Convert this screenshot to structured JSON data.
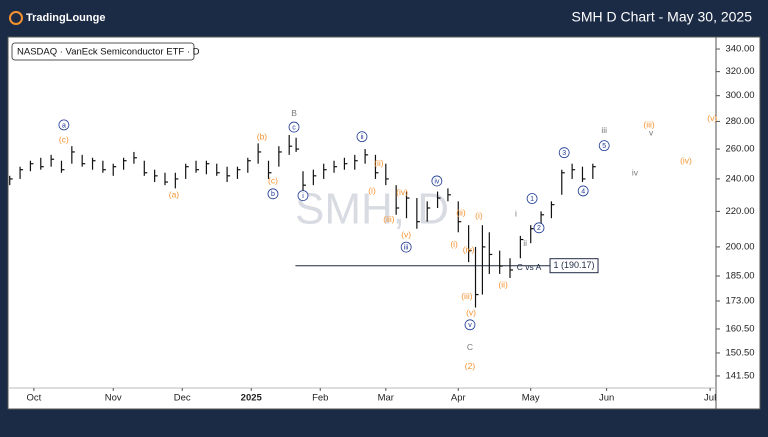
{
  "header": {
    "logo": "TradingLounge",
    "title": "SMH D Chart - May 30, 2025"
  },
  "chart_data": {
    "type": "ohlc",
    "legend": "NASDAQ · VanEck Semiconductor ETF · D",
    "watermark": "SMH, D",
    "log_scale": true,
    "color": "#111111",
    "xlim": [
      -7.5,
      197.7
    ],
    "xticks": [
      {
        "value": 0,
        "label": "Oct"
      },
      {
        "value": 23,
        "label": "Nov"
      },
      {
        "value": 43,
        "label": "Dec"
      },
      {
        "value": 63,
        "label": "2025"
      },
      {
        "value": 83,
        "label": "Feb"
      },
      {
        "value": 102,
        "label": "Mar"
      },
      {
        "value": 123,
        "label": "Apr"
      },
      {
        "value": 144,
        "label": "May"
      },
      {
        "value": 166,
        "label": "Jun"
      },
      {
        "value": 196,
        "label": "Jul"
      }
    ],
    "ylim": [
      137,
      350.2
    ],
    "yticks": [
      {
        "value": 340,
        "label": "340.00"
      },
      {
        "value": 320,
        "label": "320.00"
      },
      {
        "value": 300,
        "label": "300.00"
      },
      {
        "value": 280,
        "label": "280.00"
      },
      {
        "value": 260,
        "label": "260.00"
      },
      {
        "value": 240,
        "label": "240.00"
      },
      {
        "value": 220,
        "label": "220.00"
      },
      {
        "value": 200,
        "label": "200.00"
      },
      {
        "value": 185,
        "label": "185.00"
      },
      {
        "value": 173,
        "label": "173.00"
      },
      {
        "value": 160.5,
        "label": "160.50"
      },
      {
        "value": 150.5,
        "label": "150.50"
      },
      {
        "value": 141.5,
        "label": "141.50"
      }
    ],
    "x": [
      -7,
      -4,
      -1,
      2,
      5,
      8,
      11,
      14,
      17,
      20,
      23,
      26,
      29,
      32,
      35,
      38,
      41,
      44,
      47,
      50,
      53,
      56,
      59,
      62,
      65,
      68,
      71,
      74,
      76,
      78,
      81,
      84,
      87,
      90,
      93,
      96,
      99,
      102,
      105,
      108,
      111,
      114,
      117,
      120,
      123,
      126,
      128,
      130,
      132,
      135,
      138,
      141,
      144,
      147,
      150,
      153,
      156,
      159,
      162
    ],
    "high": [
      242,
      248,
      252,
      254,
      256,
      252,
      262,
      256,
      254,
      252,
      250,
      254,
      258,
      252,
      246,
      244,
      244,
      250,
      252,
      252,
      250,
      248,
      248,
      254,
      264,
      252,
      262,
      270,
      268,
      245,
      246,
      250,
      252,
      254,
      256,
      260,
      256,
      250,
      236,
      232,
      228,
      226,
      232,
      234,
      226,
      212,
      200,
      212,
      208,
      198,
      194,
      206,
      212,
      220,
      226,
      246,
      250,
      248,
      250
    ],
    "low": [
      236,
      240,
      245,
      246,
      248,
      244,
      250,
      248,
      246,
      244,
      242,
      246,
      250,
      242,
      238,
      236,
      234,
      240,
      244,
      243,
      242,
      238,
      240,
      244,
      250,
      240,
      248,
      256,
      258,
      230,
      236,
      240,
      244,
      246,
      246,
      250,
      240,
      236,
      218,
      216,
      210,
      214,
      222,
      226,
      208,
      192,
      170,
      176,
      186,
      186,
      184,
      194,
      202,
      208,
      216,
      230,
      240,
      238,
      240
    ],
    "close": [
      240,
      246,
      250,
      248,
      253,
      246,
      258,
      250,
      252,
      246,
      248,
      252,
      254,
      244,
      242,
      238,
      240,
      248,
      246,
      250,
      244,
      242,
      246,
      252,
      258,
      244,
      258,
      262,
      260,
      236,
      242,
      246,
      248,
      250,
      252,
      256,
      244,
      240,
      222,
      228,
      214,
      222,
      228,
      230,
      214,
      198,
      176,
      200,
      196,
      190,
      188,
      204,
      210,
      218,
      224,
      244,
      246,
      240,
      248
    ],
    "levels": [
      {
        "value": 190.17,
        "label": "1 (190.17)",
        "x_start": 75.8,
        "x_end": 149.6
      }
    ],
    "annotations": [
      {
        "text": "a",
        "x": 8.7,
        "y": 277.4,
        "color": "#1f3a93",
        "circle": true
      },
      {
        "text": "(c)",
        "x": 8.7,
        "y": 266.4,
        "color": "#f5922f",
        "circle": false
      },
      {
        "text": "(a)",
        "x": 40.6,
        "y": 230,
        "color": "#f5922f",
        "circle": false
      },
      {
        "text": "B",
        "x": 75.4,
        "y": 286.4,
        "color": "#777777",
        "circle": false
      },
      {
        "text": "c",
        "x": 75.4,
        "y": 275.8,
        "color": "#1f3a93",
        "circle": true
      },
      {
        "text": "(b)",
        "x": 66.1,
        "y": 268.8,
        "color": "#f5922f",
        "circle": false
      },
      {
        "text": "(c)",
        "x": 69.3,
        "y": 238.7,
        "color": "#f5922f",
        "circle": false
      },
      {
        "text": "b",
        "x": 69.3,
        "y": 230.6,
        "color": "#1f3a93",
        "circle": true
      },
      {
        "text": "i",
        "x": 78,
        "y": 229.5,
        "color": "#1f3a93",
        "circle": true
      },
      {
        "text": "ii",
        "x": 95.1,
        "y": 268.8,
        "color": "#1f3a93",
        "circle": true
      },
      {
        "text": "(i)",
        "x": 98,
        "y": 232.4,
        "color": "#f5922f",
        "circle": false
      },
      {
        "text": "(ii)",
        "x": 100,
        "y": 250.4,
        "color": "#f5922f",
        "circle": false
      },
      {
        "text": "(iii)",
        "x": 102.9,
        "y": 215.5,
        "color": "#f5922f",
        "circle": false
      },
      {
        "text": "(iv)",
        "x": 106.7,
        "y": 231.7,
        "color": "#f5922f",
        "circle": false
      },
      {
        "text": "(v)",
        "x": 107.9,
        "y": 206.5,
        "color": "#f5922f",
        "circle": false
      },
      {
        "text": "iii",
        "x": 107.9,
        "y": 199.9,
        "color": "#1f3a93",
        "circle": true
      },
      {
        "text": "iv",
        "x": 116.8,
        "y": 238.7,
        "color": "#1f3a93",
        "circle": true
      },
      {
        "text": "(ii)",
        "x": 123.8,
        "y": 219.2,
        "color": "#f5922f",
        "circle": false
      },
      {
        "text": "(i)",
        "x": 129,
        "y": 217.4,
        "color": "#f5922f",
        "circle": false
      },
      {
        "text": "(i)",
        "x": 121.8,
        "y": 201.3,
        "color": "#f5922f",
        "circle": false
      },
      {
        "text": "(iv)",
        "x": 126,
        "y": 198.5,
        "color": "#f5922f",
        "circle": false
      },
      {
        "text": "(iii)",
        "x": 125.5,
        "y": 175.2,
        "color": "#f5922f",
        "circle": false
      },
      {
        "text": "(v)",
        "x": 126.7,
        "y": 167.6,
        "color": "#f5922f",
        "circle": false
      },
      {
        "text": "v",
        "x": 126.4,
        "y": 162.3,
        "color": "#1f3a93",
        "circle": true
      },
      {
        "text": "C",
        "x": 126.4,
        "y": 152.8,
        "color": "#777777",
        "circle": false
      },
      {
        "text": "(2)",
        "x": 126.4,
        "y": 145.3,
        "color": "#f5922f",
        "circle": false
      },
      {
        "text": "(ii)",
        "x": 136,
        "y": 180.8,
        "color": "#f5922f",
        "circle": false
      },
      {
        "text": "C vs A",
        "x": 143.5,
        "y": 189.3,
        "color": "#1f2a44",
        "circle": false
      },
      {
        "text": "i",
        "x": 139.7,
        "y": 218.7,
        "color": "#777777",
        "circle": false
      },
      {
        "text": "ii",
        "x": 142.4,
        "y": 201.9,
        "color": "#777777",
        "circle": false
      },
      {
        "text": "1",
        "x": 144.4,
        "y": 227.7,
        "color": "#1f3a93",
        "circle": true
      },
      {
        "text": "2",
        "x": 146.4,
        "y": 210.5,
        "color": "#1f3a93",
        "circle": true
      },
      {
        "text": "3",
        "x": 153.7,
        "y": 257.5,
        "color": "#1f3a93",
        "circle": true
      },
      {
        "text": "4",
        "x": 159.2,
        "y": 232.4,
        "color": "#1f3a93",
        "circle": true
      },
      {
        "text": "5",
        "x": 165.3,
        "y": 262.4,
        "color": "#1f3a93",
        "circle": true
      },
      {
        "text": "iii",
        "x": 165.3,
        "y": 273.3,
        "color": "#777777",
        "circle": false
      },
      {
        "text": "iv",
        "x": 174.2,
        "y": 244,
        "color": "#777777",
        "circle": false
      },
      {
        "text": "v",
        "x": 178.9,
        "y": 271.8,
        "color": "#777777",
        "circle": false
      },
      {
        "text": "(iii)",
        "x": 178.3,
        "y": 277.4,
        "color": "#f5922f",
        "circle": false
      },
      {
        "text": "(iv)",
        "x": 189,
        "y": 252,
        "color": "#f5922f",
        "circle": false
      },
      {
        "text": "(v)",
        "x": 196.6,
        "y": 282.3,
        "color": "#f5922f",
        "circle": false
      }
    ]
  }
}
